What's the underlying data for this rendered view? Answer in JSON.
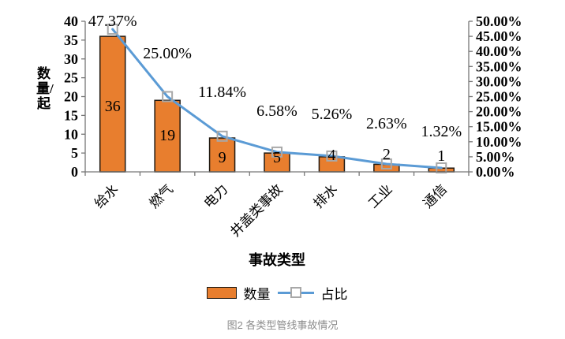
{
  "figure_caption": "图2 各类型管线事故情况",
  "chart_data": {
    "type": "bar",
    "combo": "bar + line (pareto)",
    "title": "",
    "categories": [
      "给水",
      "燃气",
      "电力",
      "井盖类事故",
      "排水",
      "工业",
      "通信"
    ],
    "series": [
      {
        "name": "数量",
        "type": "bar",
        "axis": "left",
        "values": [
          36,
          19,
          9,
          5,
          4,
          2,
          1
        ],
        "data_labels": [
          "36",
          "19",
          "9",
          "5",
          "4",
          "2",
          "1"
        ],
        "color": "#E87E2E",
        "border_color": "#211A12"
      },
      {
        "name": "占比",
        "type": "line",
        "axis": "right",
        "values": [
          47.37,
          25.0,
          11.84,
          6.58,
          5.26,
          2.63,
          1.32
        ],
        "data_labels": [
          "47.37%",
          "25.00%",
          "11.84%",
          "6.58%",
          "5.26%",
          "2.63%",
          "1.32%"
        ],
        "color": "#5B9BD5",
        "marker": "open-square",
        "marker_border_color": "#A8A8A8"
      }
    ],
    "xlabel": "事故类型",
    "ylabel": "数量/起",
    "left_axis": {
      "min": 0,
      "max": 40,
      "step": 5,
      "tick_labels": [
        "0",
        "5",
        "10",
        "15",
        "20",
        "25",
        "30",
        "35",
        "40"
      ]
    },
    "right_axis": {
      "min": 0,
      "max": 50,
      "step": 5,
      "tick_labels": [
        "0.00%",
        "5.00%",
        "10.00%",
        "15.00%",
        "20.00%",
        "25.00%",
        "30.00%",
        "35.00%",
        "40.00%",
        "45.00%",
        "50.00%"
      ]
    },
    "legend": {
      "position": "bottom",
      "entries": [
        "数量",
        "占比"
      ]
    },
    "grid": false,
    "axis_color": "#777777",
    "text_color": "#000000",
    "layout_hints": {
      "bar_label_y": [
        135,
        172,
        200,
        200,
        197,
        196,
        198
      ],
      "pct_label_y": [
        27,
        68,
        117,
        141,
        145,
        157,
        167
      ]
    }
  }
}
